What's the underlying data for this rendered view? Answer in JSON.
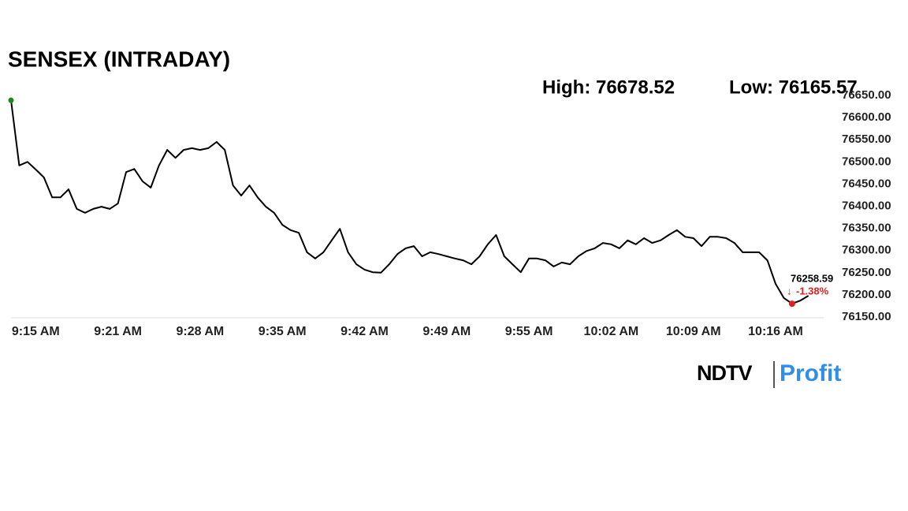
{
  "chart_data": {
    "type": "line",
    "title": "SENSEX (INTRADAY)",
    "high": "High: 76678.52",
    "low": "Low: 76165.57",
    "annotation": "76258.59",
    "change": "-1.38%",
    "brand": [
      "NDTV",
      "Profit"
    ],
    "color": "#000000",
    "categories": [
      null,
      null,
      null,
      "9:15 AM",
      null,
      null,
      null,
      null,
      null,
      null,
      null,
      null,
      null,
      "9:21 AM",
      null,
      null,
      null,
      null,
      null,
      null,
      null,
      null,
      null,
      "9:28 AM",
      null,
      null,
      null,
      null,
      null,
      null,
      null,
      null,
      null,
      "9:35 AM",
      null,
      null,
      null,
      null,
      null,
      null,
      null,
      null,
      null,
      "9:42 AM",
      null,
      null,
      null,
      null,
      null,
      null,
      null,
      null,
      null,
      "9:49 AM",
      null,
      null,
      null,
      null,
      null,
      null,
      null,
      null,
      null,
      "9:55 AM",
      null,
      null,
      null,
      null,
      null,
      null,
      null,
      null,
      null,
      "10:02 AM",
      null,
      null,
      null,
      null,
      null,
      null,
      null,
      null,
      null,
      "10:09 AM",
      null,
      null,
      null,
      null,
      null,
      null,
      null,
      null,
      null,
      "10:16 AM",
      null,
      null,
      null,
      null
    ],
    "values": [
      76639,
      76492,
      76500,
      76483,
      76465,
      76420,
      76420,
      76438,
      76394,
      76385,
      76394,
      76399,
      76394,
      76406,
      76477,
      76484,
      76456,
      76442,
      76492,
      76527,
      76509,
      76527,
      76531,
      76527,
      76531,
      76545,
      76527,
      76447,
      76424,
      76447,
      76420,
      76399,
      76385,
      76358,
      76346,
      76340,
      76296,
      76282,
      76296,
      76323,
      76349,
      76296,
      76269,
      76257,
      76251,
      76250,
      76269,
      76292,
      76305,
      76310,
      76287,
      76296,
      76292,
      76287,
      76282,
      76278,
      76269,
      76287,
      76314,
      76335,
      76287,
      76269,
      76251,
      76282,
      76282,
      76278,
      76264,
      76273,
      76269,
      76287,
      76299,
      76305,
      76317,
      76314,
      76305,
      76323,
      76314,
      76328,
      76317,
      76323,
      76335,
      76346,
      76331,
      76328,
      76310,
      76331,
      76331,
      76328,
      76317,
      76296,
      76296,
      76296,
      76278,
      76225,
      76193,
      76180,
      76187,
      76198
    ],
    "ylim": [
      76150,
      76650
    ],
    "yticks": [
      {
        "value": 76150,
        "label": "76150.00"
      },
      {
        "value": 76200,
        "label": "76200.00"
      },
      {
        "value": 76250,
        "label": "76250.00"
      },
      {
        "value": 76300,
        "label": "76300.00"
      },
      {
        "value": 76350,
        "label": "76350.00"
      },
      {
        "value": 76400,
        "label": "76400.00"
      },
      {
        "value": 76450,
        "label": "76450.00"
      },
      {
        "value": 76500,
        "label": "76500.00"
      },
      {
        "value": 76550,
        "label": "76550.00"
      },
      {
        "value": 76600,
        "label": "76600.00"
      },
      {
        "value": 76650,
        "label": "76650.00"
      }
    ]
  }
}
